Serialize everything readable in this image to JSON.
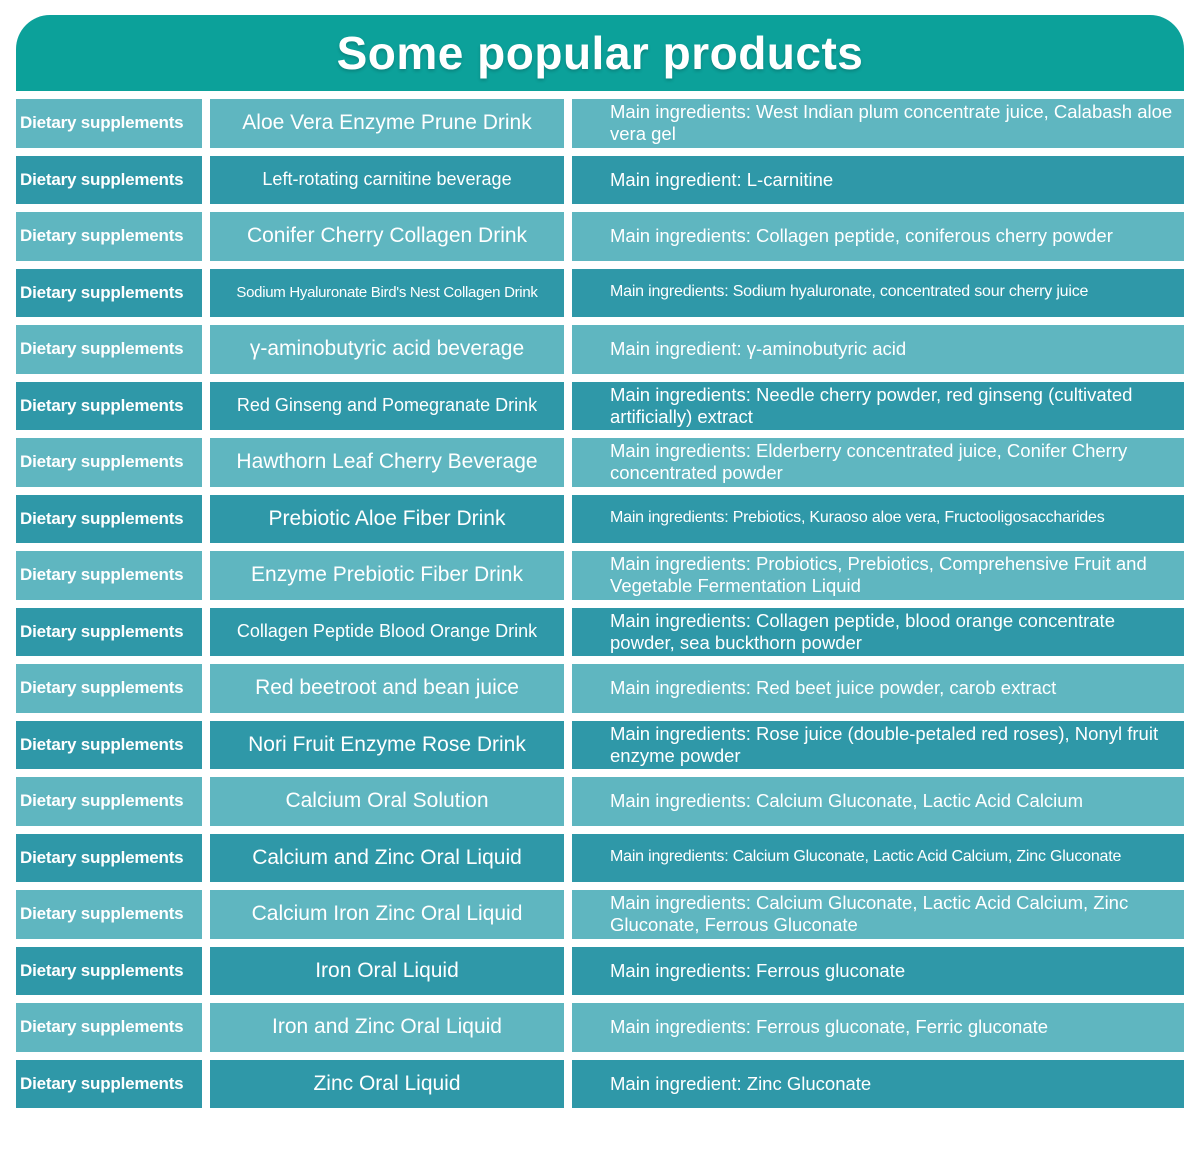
{
  "title": "Some popular products",
  "colors": {
    "header": "#0ca19a",
    "row_dark": "#2f98a8",
    "row_light": "#5fb6c0",
    "text": "#ffffff",
    "background": "#ffffff"
  },
  "table": {
    "category_label": "Dietary supplements",
    "rows": [
      {
        "category": "Dietary supplements",
        "product": "Aloe Vera Enzyme Prune Drink",
        "ingredients": "Main ingredients: West Indian plum concentrate juice, Calabash aloe vera gel"
      },
      {
        "category": "Dietary supplements",
        "product": "Left-rotating carnitine beverage",
        "ingredients": "Main ingredient: L-carnitine"
      },
      {
        "category": "Dietary supplements",
        "product": "Conifer Cherry Collagen Drink",
        "ingredients": "Main ingredients: Collagen peptide, coniferous cherry powder"
      },
      {
        "category": "Dietary supplements",
        "product": "Sodium Hyaluronate Bird's Nest Collagen Drink",
        "ingredients": "Main ingredients: Sodium hyaluronate, concentrated sour cherry juice"
      },
      {
        "category": "Dietary supplements",
        "product": "γ-aminobutyric acid beverage",
        "ingredients": "Main ingredient: γ-aminobutyric acid"
      },
      {
        "category": "Dietary supplements",
        "product": "Red Ginseng and Pomegranate Drink",
        "ingredients": "Main ingredients: Needle cherry powder, red ginseng (cultivated artificially) extract"
      },
      {
        "category": "Dietary supplements",
        "product": "Hawthorn Leaf Cherry Beverage",
        "ingredients": "Main ingredients: Elderberry concentrated juice, Conifer Cherry concentrated powder"
      },
      {
        "category": "Dietary supplements",
        "product": "Prebiotic Aloe Fiber Drink",
        "ingredients": "Main ingredients: Prebiotics, Kuraoso aloe vera, Fructooligosaccharides"
      },
      {
        "category": "Dietary supplements",
        "product": "Enzyme Prebiotic Fiber Drink",
        "ingredients": "Main ingredients: Probiotics, Prebiotics, Comprehensive Fruit and Vegetable Fermentation Liquid"
      },
      {
        "category": "Dietary supplements",
        "product": "Collagen Peptide Blood Orange Drink",
        "ingredients": "Main ingredients: Collagen peptide, blood orange concentrate powder, sea buckthorn powder"
      },
      {
        "category": "Dietary supplements",
        "product": "Red beetroot and bean juice",
        "ingredients": "Main ingredients: Red beet juice powder, carob extract"
      },
      {
        "category": "Dietary supplements",
        "product": "Nori Fruit Enzyme Rose Drink",
        "ingredients": "Main ingredients: Rose juice (double-petaled red roses), Nonyl fruit enzyme powder"
      },
      {
        "category": "Dietary supplements",
        "product": "Calcium Oral Solution",
        "ingredients": "Main ingredients: Calcium Gluconate, Lactic Acid Calcium"
      },
      {
        "category": "Dietary supplements",
        "product": "Calcium and Zinc Oral Liquid",
        "ingredients": "Main ingredients: Calcium Gluconate, Lactic Acid Calcium, Zinc Gluconate"
      },
      {
        "category": "Dietary supplements",
        "product": "Calcium Iron Zinc Oral Liquid",
        "ingredients": "Main ingredients: Calcium Gluconate, Lactic Acid Calcium, Zinc Gluconate, Ferrous Gluconate"
      },
      {
        "category": "Dietary supplements",
        "product": "Iron Oral Liquid",
        "ingredients": "Main ingredients: Ferrous gluconate"
      },
      {
        "category": "Dietary supplements",
        "product": "Iron and Zinc Oral Liquid",
        "ingredients": "Main ingredients: Ferrous gluconate, Ferric gluconate"
      },
      {
        "category": "Dietary supplements",
        "product": "Zinc Oral Liquid",
        "ingredients": "Main ingredient: Zinc Gluconate"
      }
    ]
  }
}
